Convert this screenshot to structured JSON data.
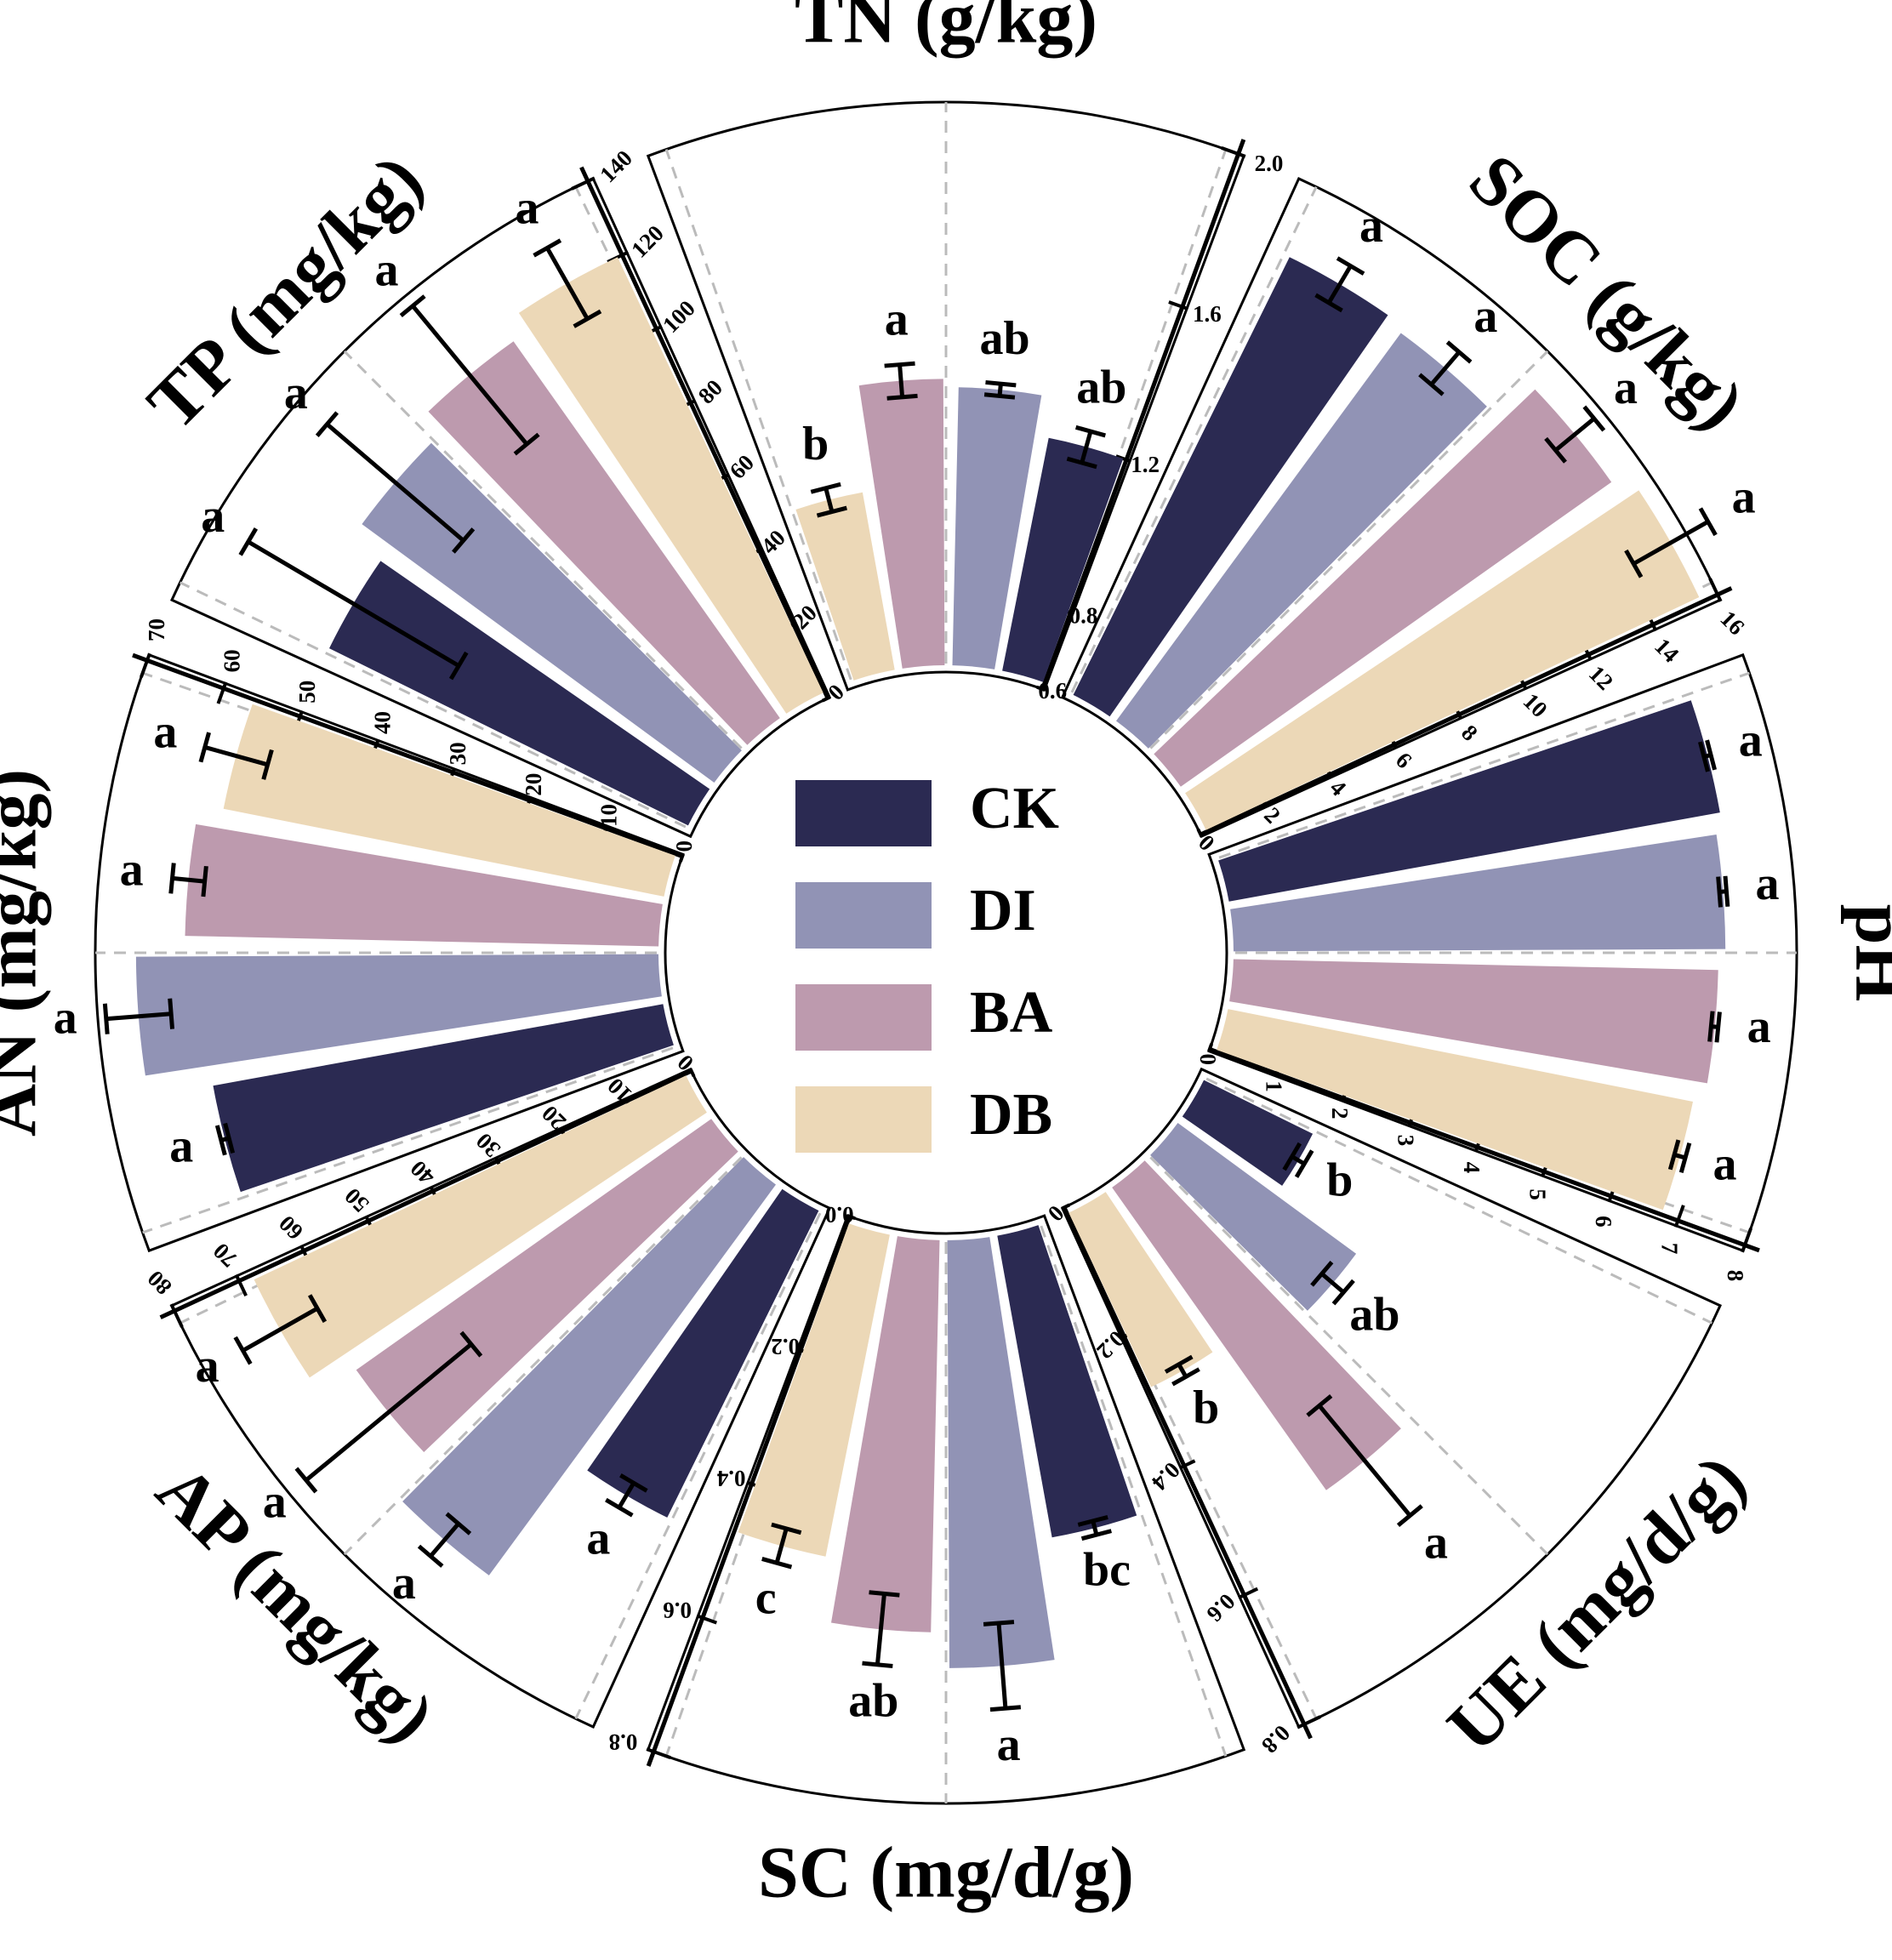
{
  "chart_data": {
    "type": "bar",
    "layout": "radial",
    "groups": [
      "CK",
      "DI",
      "BA",
      "DB"
    ],
    "colors": {
      "CK": "#2b2a52",
      "DI": "#9193b5",
      "BA": "#bd9aae",
      "DB": "#ecd8b7"
    },
    "legend": {
      "placement": "center",
      "items": [
        "CK",
        "DI",
        "BA",
        "DB"
      ]
    },
    "grid": true,
    "panels": [
      {
        "key": "TN",
        "title": "TN (g/kg)",
        "ylim": [
          0.6,
          2.0
        ],
        "ticks": [
          "0.6",
          "0.8",
          "1.2",
          "1.6",
          "2.0"
        ],
        "order": [
          "CK",
          "DI",
          "BA",
          "DB"
        ],
        "values": [
          1.2,
          1.3,
          1.32,
          1.06
        ],
        "errors": [
          0.04,
          0.015,
          0.04,
          0.03
        ],
        "letters": [
          "ab",
          "ab",
          "a",
          "b"
        ]
      },
      {
        "key": "SOC",
        "title": "SOC (g/kg)",
        "ylim": [
          0,
          16
        ],
        "ticks": [
          "0",
          "2",
          "4",
          "6",
          "8",
          "10",
          "12",
          "14",
          "16"
        ],
        "order": [
          "DB",
          "BA",
          "DI",
          "CK"
        ],
        "values": [
          15.5,
          15.0,
          13.7,
          13.9
        ],
        "errors": [
          1.2,
          0.7,
          0.6,
          0.6
        ],
        "letters": [
          "a",
          "a",
          "a",
          "a"
        ]
      },
      {
        "key": "pH",
        "title": "pH",
        "ylim": [
          0,
          8
        ],
        "ticks": [
          "0",
          "1",
          "2",
          "3",
          "4",
          "5",
          "6",
          "7",
          "8"
        ],
        "order": [
          "DB",
          "BA",
          "DI",
          "CK"
        ],
        "values": [
          6.75,
          6.9,
          7.0,
          7.1
        ],
        "errors": [
          0.08,
          0.05,
          0.05,
          0.05
        ],
        "letters": [
          "a",
          "a",
          "a",
          "a"
        ]
      },
      {
        "key": "UE",
        "title": "UE (mg/d/g)",
        "ylim": [
          0,
          0.8
        ],
        "ticks": [
          "0",
          "0.2",
          "0.4",
          "0.6",
          "0.8"
        ],
        "order": [
          "DB",
          "BA",
          "DI",
          "CK"
        ],
        "values": [
          0.28,
          0.53,
          0.32,
          0.18
        ],
        "errors": [
          0.01,
          0.1,
          0.02,
          0.01
        ],
        "letters": [
          "b",
          "a",
          "ab",
          "b"
        ]
      },
      {
        "key": "SC",
        "title": "SC (mg/d/g)",
        "ylim": [
          0,
          0.8
        ],
        "ticks": [
          "0.0",
          "0.2",
          "0.4",
          "0.6",
          "0.8"
        ],
        "order": [
          "DB",
          "BA",
          "DI",
          "CK"
        ],
        "values": [
          0.47,
          0.56,
          0.61,
          0.44
        ],
        "errors": [
          0.025,
          0.05,
          0.06,
          0.01
        ],
        "letters": [
          "c",
          "ab",
          "a",
          "bc"
        ]
      },
      {
        "key": "AP",
        "title": "AP (mg/kg)",
        "ylim": [
          0,
          80
        ],
        "ticks": [
          "0",
          "10",
          "20",
          "30",
          "40",
          "50",
          "60",
          "70",
          "80"
        ],
        "order": [
          "DB",
          "BA",
          "DI",
          "CK"
        ],
        "values": [
          68,
          62,
          69,
          49
        ],
        "errors": [
          6,
          15,
          3,
          2
        ],
        "letters": [
          "a",
          "a",
          "a",
          "a"
        ]
      },
      {
        "key": "AN",
        "title": "AN (mg/kg)",
        "ylim": [
          0,
          70
        ],
        "ticks": [
          "0",
          "10",
          "20",
          "30",
          "40",
          "50",
          "60",
          "70"
        ],
        "order": [
          "DB",
          "BA",
          "DI",
          "CK"
        ],
        "values": [
          56,
          59,
          65,
          57
        ],
        "errors": [
          4,
          2,
          4,
          0.5
        ],
        "letters": [
          "a",
          "a",
          "a",
          "a"
        ]
      },
      {
        "key": "TP",
        "title": "TP (mg/kg)",
        "ylim": [
          0,
          140
        ],
        "ticks": [
          "0",
          "20",
          "40",
          "60",
          "80",
          "100",
          "120",
          "140"
        ],
        "order": [
          "DB",
          "BA",
          "DI",
          "CK"
        ],
        "values": [
          120,
          115,
          109,
          100
        ],
        "errors": [
          10,
          22,
          22,
          30
        ],
        "letters": [
          "a",
          "a",
          "a",
          "a"
        ]
      }
    ]
  }
}
